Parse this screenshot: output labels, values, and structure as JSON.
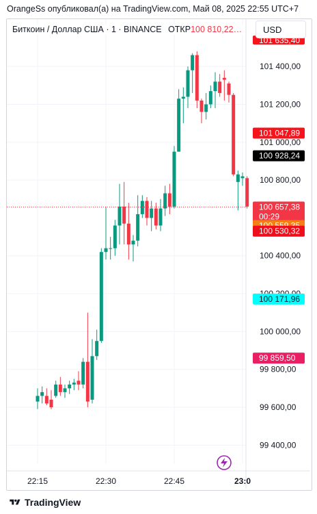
{
  "header": {
    "attribution": "OrangeSs опубликовал(а) на TradingView.com, Май 08, 2025 22:55 UTC+7"
  },
  "symbol": {
    "name": "Биткоин / Доллар США · 1 · BINANCE",
    "open_label": "ОТКР",
    "open_value": "100 810,22…"
  },
  "currency": "USD",
  "footer": {
    "brand": "TradingView"
  },
  "colors": {
    "up": "#089981",
    "down": "#f23645",
    "grid": "#f0f3fa"
  },
  "chart_data": {
    "type": "candlestick",
    "ylim": [
      99300,
      101650
    ],
    "yticks": [
      99400,
      99600,
      99800,
      100000,
      100200,
      100400,
      100800,
      101000,
      101200,
      101400
    ],
    "ytick_labels": [
      "99 400,00",
      "99 600,00",
      "99 800,00",
      "100 000,00",
      "100 200,00",
      "100 400,00",
      "100 800,00",
      "101 000,00",
      "101 200,00",
      "101 400,00"
    ],
    "xticks": [
      {
        "label": "22:15",
        "minute": 15
      },
      {
        "label": "22:30",
        "minute": 30
      },
      {
        "label": "22:45",
        "minute": 45
      },
      {
        "label": "23:0",
        "minute": 60
      }
    ],
    "candles": [
      {
        "t": "22:15",
        "o": 99630,
        "h": 99700,
        "l": 99590,
        "c": 99660
      },
      {
        "t": "22:16",
        "o": 99660,
        "h": 99710,
        "l": 99620,
        "c": 99680
      },
      {
        "t": "22:17",
        "o": 99660,
        "h": 99700,
        "l": 99610,
        "c": 99620
      },
      {
        "t": "22:18",
        "o": 99640,
        "h": 99690,
        "l": 99590,
        "c": 99600
      },
      {
        "t": "22:19",
        "o": 99660,
        "h": 99740,
        "l": 99650,
        "c": 99720
      },
      {
        "t": "22:20",
        "o": 99720,
        "h": 99760,
        "l": 99660,
        "c": 99680
      },
      {
        "t": "22:21",
        "o": 99680,
        "h": 99720,
        "l": 99650,
        "c": 99700
      },
      {
        "t": "22:22",
        "o": 99700,
        "h": 99740,
        "l": 99670,
        "c": 99720
      },
      {
        "t": "22:23",
        "o": 99720,
        "h": 99750,
        "l": 99690,
        "c": 99730
      },
      {
        "t": "22:24",
        "o": 99740,
        "h": 99790,
        "l": 99690,
        "c": 99720
      },
      {
        "t": "22:25",
        "o": 99720,
        "h": 99860,
        "l": 99700,
        "c": 99840
      },
      {
        "t": "22:26",
        "o": 99840,
        "h": 100100,
        "l": 99600,
        "c": 99630
      },
      {
        "t": "22:27",
        "o": 99640,
        "h": 99960,
        "l": 99620,
        "c": 99870
      },
      {
        "t": "22:28",
        "o": 99870,
        "h": 100010,
        "l": 99850,
        "c": 99950
      },
      {
        "t": "22:29",
        "o": 99950,
        "h": 100440,
        "l": 99940,
        "c": 100420
      },
      {
        "t": "22:30",
        "o": 100420,
        "h": 100660,
        "l": 100380,
        "c": 100440
      },
      {
        "t": "22:31",
        "o": 100440,
        "h": 100500,
        "l": 100380,
        "c": 100440
      },
      {
        "t": "22:32",
        "o": 100440,
        "h": 100590,
        "l": 100400,
        "c": 100560
      },
      {
        "t": "22:33",
        "o": 100560,
        "h": 100780,
        "l": 100460,
        "c": 100660
      },
      {
        "t": "22:34",
        "o": 100660,
        "h": 100790,
        "l": 100460,
        "c": 100570
      },
      {
        "t": "22:35",
        "o": 100570,
        "h": 100680,
        "l": 100380,
        "c": 100460
      },
      {
        "t": "22:36",
        "o": 100460,
        "h": 100510,
        "l": 100370,
        "c": 100480
      },
      {
        "t": "22:37",
        "o": 100480,
        "h": 100720,
        "l": 100450,
        "c": 100620
      },
      {
        "t": "22:38",
        "o": 100620,
        "h": 100720,
        "l": 100600,
        "c": 100690
      },
      {
        "t": "22:39",
        "o": 100690,
        "h": 100710,
        "l": 100560,
        "c": 100600
      },
      {
        "t": "22:40",
        "o": 100600,
        "h": 100690,
        "l": 100530,
        "c": 100650
      },
      {
        "t": "22:41",
        "o": 100650,
        "h": 100680,
        "l": 100540,
        "c": 100560
      },
      {
        "t": "22:42",
        "o": 100560,
        "h": 100700,
        "l": 100530,
        "c": 100650
      },
      {
        "t": "22:43",
        "o": 100650,
        "h": 100770,
        "l": 100610,
        "c": 100730
      },
      {
        "t": "22:44",
        "o": 100730,
        "h": 100780,
        "l": 100620,
        "c": 100660
      },
      {
        "t": "22:45",
        "o": 100660,
        "h": 100980,
        "l": 100650,
        "c": 100950
      },
      {
        "t": "22:46",
        "o": 100950,
        "h": 101280,
        "l": 100950,
        "c": 101230
      },
      {
        "t": "22:47",
        "o": 101230,
        "h": 101290,
        "l": 101100,
        "c": 101240
      },
      {
        "t": "22:48",
        "o": 101240,
        "h": 101400,
        "l": 101180,
        "c": 101380
      },
      {
        "t": "22:49",
        "o": 101380,
        "h": 101470,
        "l": 101260,
        "c": 101460
      },
      {
        "t": "22:50",
        "o": 101460,
        "h": 101480,
        "l": 101180,
        "c": 101220
      },
      {
        "t": "22:51",
        "o": 101220,
        "h": 101230,
        "l": 101100,
        "c": 101160
      },
      {
        "t": "22:52",
        "o": 101160,
        "h": 101260,
        "l": 101120,
        "c": 101200
      },
      {
        "t": "22:53",
        "o": 101200,
        "h": 101300,
        "l": 101180,
        "c": 101270
      },
      {
        "t": "22:54",
        "o": 101270,
        "h": 101370,
        "l": 101180,
        "c": 101320
      },
      {
        "t": "22:55",
        "o": 101320,
        "h": 101360,
        "l": 101240,
        "c": 101260
      },
      {
        "t": "22:56",
        "o": 101340,
        "h": 101380,
        "l": 101220,
        "c": 101330
      },
      {
        "t": "22:57",
        "o": 101310,
        "h": 101320,
        "l": 101210,
        "c": 101250
      },
      {
        "t": "22:58",
        "o": 101250,
        "h": 101260,
        "l": 100820,
        "c": 100830
      },
      {
        "t": "22:59",
        "o": 100790,
        "h": 100850,
        "l": 100640,
        "c": 100830
      },
      {
        "t": "23:00",
        "o": 100810,
        "h": 100840,
        "l": 100770,
        "c": 100820
      },
      {
        "t": "23:01",
        "o": 100810,
        "h": 100820,
        "l": 100650,
        "c": 100660
      }
    ],
    "current_price": 100657.38,
    "price_labels": [
      {
        "value": 101047.89,
        "text": "101 047,89",
        "bg": "#f7131c",
        "fg": "#ffffff"
      },
      {
        "value": 100928.24,
        "text": "100 928,24",
        "bg": "#000000",
        "fg": "#ffffff"
      },
      {
        "value": 100657.38,
        "text": "100 657,38",
        "sub": "00:29",
        "bg": "#f23645",
        "fg": "#ffffff"
      },
      {
        "value": 100559.35,
        "text": "100 559,35",
        "bg": "#f57f17",
        "fg": "#ffffff"
      },
      {
        "value": 100530.32,
        "text": "100 530,32",
        "bg": "#ee0f1c",
        "fg": "#ffffff"
      },
      {
        "value": 100171.96,
        "text": "100 171,96",
        "bg": "#00ffff",
        "fg": "#131722"
      },
      {
        "value": 99859.5,
        "text": "99 859,50",
        "bg": "#e91e63",
        "fg": "#ffffff"
      }
    ],
    "top_cut_label": {
      "text": "101 635,40",
      "bg": "#f7131c"
    }
  }
}
